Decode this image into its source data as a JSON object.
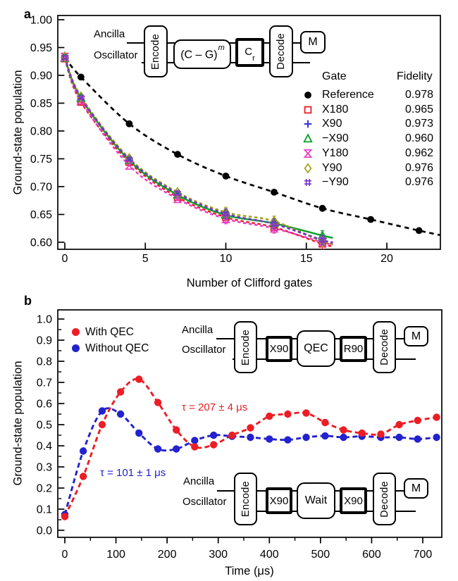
{
  "figure": {
    "panel_a_label": "a",
    "panel_b_label": "b"
  },
  "chart_data": [
    {
      "id": "a",
      "type": "scatter",
      "xlabel": "Number of Clifford gates",
      "ylabel": "Ground-state population",
      "xlim": [
        -0.5,
        23.3
      ],
      "ylim": [
        0.587,
        1.008
      ],
      "xtick_values": [
        0,
        5,
        10,
        15,
        20
      ],
      "xtick_labels": [
        "0",
        "5",
        "10",
        "15",
        "20"
      ],
      "ytick_values": [
        0.6,
        0.65,
        0.7,
        0.75,
        0.8,
        0.85,
        0.9,
        0.95,
        1.0
      ],
      "ytick_labels": [
        "0.60",
        "0.65",
        "0.70",
        "0.75",
        "0.80",
        "0.85",
        "0.90",
        "0.95",
        "1.00"
      ],
      "grid": false,
      "legend": {
        "header": [
          "Gate",
          "Fidelity"
        ],
        "position": "upper right"
      },
      "series": [
        {
          "name": "Reference",
          "fidelity": "0.978",
          "marker": "circle",
          "color": "#000000",
          "linestyle": "dashed",
          "x": [
            0,
            1,
            4,
            7,
            10,
            13,
            16,
            19,
            22
          ],
          "y": [
            0.932,
            0.897,
            0.813,
            0.758,
            0.719,
            0.69,
            0.661,
            0.641,
            0.621
          ]
        },
        {
          "name": "X180",
          "fidelity": "0.965",
          "marker": "square",
          "color": "#ec1d24",
          "linestyle": "dashed",
          "x": [
            0,
            1,
            4,
            7,
            10,
            13,
            16
          ],
          "y": [
            0.93,
            0.852,
            0.744,
            0.681,
            0.645,
            0.627,
            0.597
          ]
        },
        {
          "name": "X90",
          "fidelity": "0.973",
          "marker": "plus",
          "color": "#3a3ad8",
          "linestyle": "dashed",
          "x": [
            0,
            1,
            4,
            7,
            10,
            13,
            16
          ],
          "y": [
            0.932,
            0.861,
            0.749,
            0.687,
            0.651,
            0.633,
            0.603
          ]
        },
        {
          "name": "−X90",
          "fidelity": "0.960",
          "marker": "triangle",
          "color": "#09a129",
          "linestyle": "solid",
          "x": [
            0,
            1,
            4,
            7,
            10,
            13,
            16
          ],
          "y": [
            0.931,
            0.859,
            0.747,
            0.685,
            0.649,
            0.634,
            0.612
          ]
        },
        {
          "name": "Y180",
          "fidelity": "0.962",
          "marker": "hourglass",
          "color": "#e83bc3",
          "linestyle": "dashed",
          "x": [
            0,
            1,
            4,
            7,
            10,
            13,
            16
          ],
          "y": [
            0.933,
            0.855,
            0.738,
            0.678,
            0.642,
            0.625,
            0.6
          ]
        },
        {
          "name": "Y90",
          "fidelity": "0.976",
          "marker": "diamond",
          "color": "#a0a018",
          "linestyle": "dashed",
          "x": [
            0,
            1,
            4,
            7,
            10,
            13,
            16
          ],
          "y": [
            0.934,
            0.862,
            0.751,
            0.69,
            0.654,
            0.638,
            0.601
          ]
        },
        {
          "name": "−Y90",
          "fidelity": "0.976",
          "marker": "hash",
          "color": "#7733c9",
          "linestyle": "dashed",
          "x": [
            0,
            1,
            4,
            7,
            10,
            13,
            16
          ],
          "y": [
            0.932,
            0.86,
            0.749,
            0.688,
            0.651,
            0.633,
            0.604
          ]
        }
      ]
    },
    {
      "id": "b",
      "type": "scatter",
      "xlabel": "Time (μs)",
      "ylabel": "Ground-state population",
      "xlim": [
        -14,
        737
      ],
      "ylim": [
        -0.035,
        1.045
      ],
      "xtick_values": [
        0,
        100,
        200,
        300,
        400,
        500,
        600,
        700
      ],
      "xtick_labels": [
        "0",
        "100",
        "200",
        "300",
        "400",
        "500",
        "600",
        "700"
      ],
      "ytick_values": [
        0.0,
        0.1,
        0.2,
        0.3,
        0.4,
        0.5,
        0.6,
        0.7,
        0.8,
        0.9,
        1.0
      ],
      "ytick_labels": [
        "0.0",
        "0.1",
        "0.2",
        "0.3",
        "0.4",
        "0.5",
        "0.6",
        "0.7",
        "0.8",
        "0.9",
        "1.0"
      ],
      "grid": false,
      "series": [
        {
          "name": "With QEC",
          "marker": "dot",
          "color": "#ec1d24",
          "linestyle": "dashed",
          "x": [
            0,
            36,
            73,
            109,
            145,
            182,
            218,
            254,
            291,
            327,
            363,
            400,
            436,
            472,
            509,
            545,
            581,
            618,
            654,
            690,
            727
          ],
          "y": [
            0.065,
            0.255,
            0.5,
            0.655,
            0.715,
            0.605,
            0.475,
            0.395,
            0.405,
            0.45,
            0.485,
            0.54,
            0.55,
            0.555,
            0.51,
            0.475,
            0.46,
            0.455,
            0.5,
            0.52,
            0.535
          ]
        },
        {
          "name": "Without QEC",
          "marker": "dot",
          "color": "#2222cf",
          "linestyle": "dashed",
          "x": [
            0,
            36,
            73,
            109,
            145,
            182,
            218,
            254,
            291,
            327,
            363,
            400,
            436,
            472,
            509,
            545,
            581,
            618,
            654,
            690,
            727
          ],
          "y": [
            0.075,
            0.375,
            0.565,
            0.55,
            0.46,
            0.385,
            0.385,
            0.425,
            0.45,
            0.445,
            0.44,
            0.432,
            0.428,
            0.44,
            0.447,
            0.44,
            0.445,
            0.44,
            0.44,
            0.432,
            0.44
          ]
        }
      ],
      "annotations": [
        {
          "text": "τ = 207 ± 4 μs",
          "color": "#ec1d24"
        },
        {
          "text": "τ = 101 ± 1 μs",
          "color": "#2222cf"
        }
      ]
    }
  ],
  "circuit_a": {
    "ancilla": "Ancilla",
    "oscillator": "Oscillator",
    "encode": "Encode",
    "gate_base": "(C – G)",
    "gate_sup": "m",
    "pulse_base": "C",
    "pulse_sub": "r",
    "decode": "Decode",
    "measure": "M"
  },
  "circuit_qec": {
    "ancilla": "Ancilla",
    "oscillator": "Oscillator",
    "encode": "Encode",
    "g1": "X90",
    "g2": "QEC",
    "g3": "R90",
    "decode": "Decode",
    "measure": "M",
    "border_color": "#c11f26"
  },
  "circuit_wait": {
    "ancilla": "Ancilla",
    "oscillator": "Oscillator",
    "encode": "Encode",
    "g1": "X90",
    "g2": "Wait",
    "g3": "X90",
    "decode": "Decode",
    "measure": "M",
    "border_color": "#5b7dbd"
  }
}
